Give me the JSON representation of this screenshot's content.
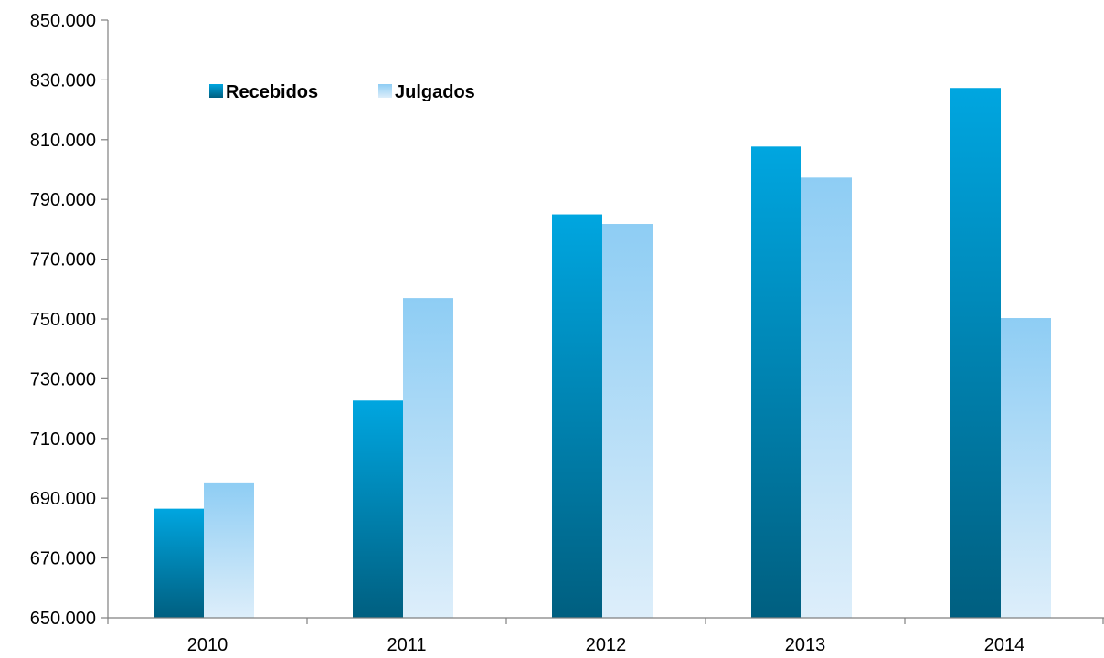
{
  "chart_data": {
    "type": "bar",
    "title": "",
    "xlabel": "",
    "ylabel": "",
    "categories": [
      "2010",
      "2011",
      "2012",
      "2013",
      "2014"
    ],
    "series": [
      {
        "name": "Recebidos",
        "values": [
          686500,
          722700,
          785000,
          807700,
          827300
        ],
        "color_top": "#00a6e0",
        "color_bottom": "#005f80"
      },
      {
        "name": "Julgados",
        "values": [
          695300,
          757000,
          781800,
          797300,
          750300
        ],
        "color_top": "#8ecdf4",
        "color_bottom": "#ddeefa"
      }
    ],
    "ylim": [
      650000,
      850000
    ],
    "ystep": 20000,
    "ytick_labels": [
      "650.000",
      "670.000",
      "690.000",
      "710.000",
      "730.000",
      "750.000",
      "770.000",
      "790.000",
      "810.000",
      "830.000",
      "850.000"
    ],
    "grid": false,
    "legend_position": "top-left"
  }
}
